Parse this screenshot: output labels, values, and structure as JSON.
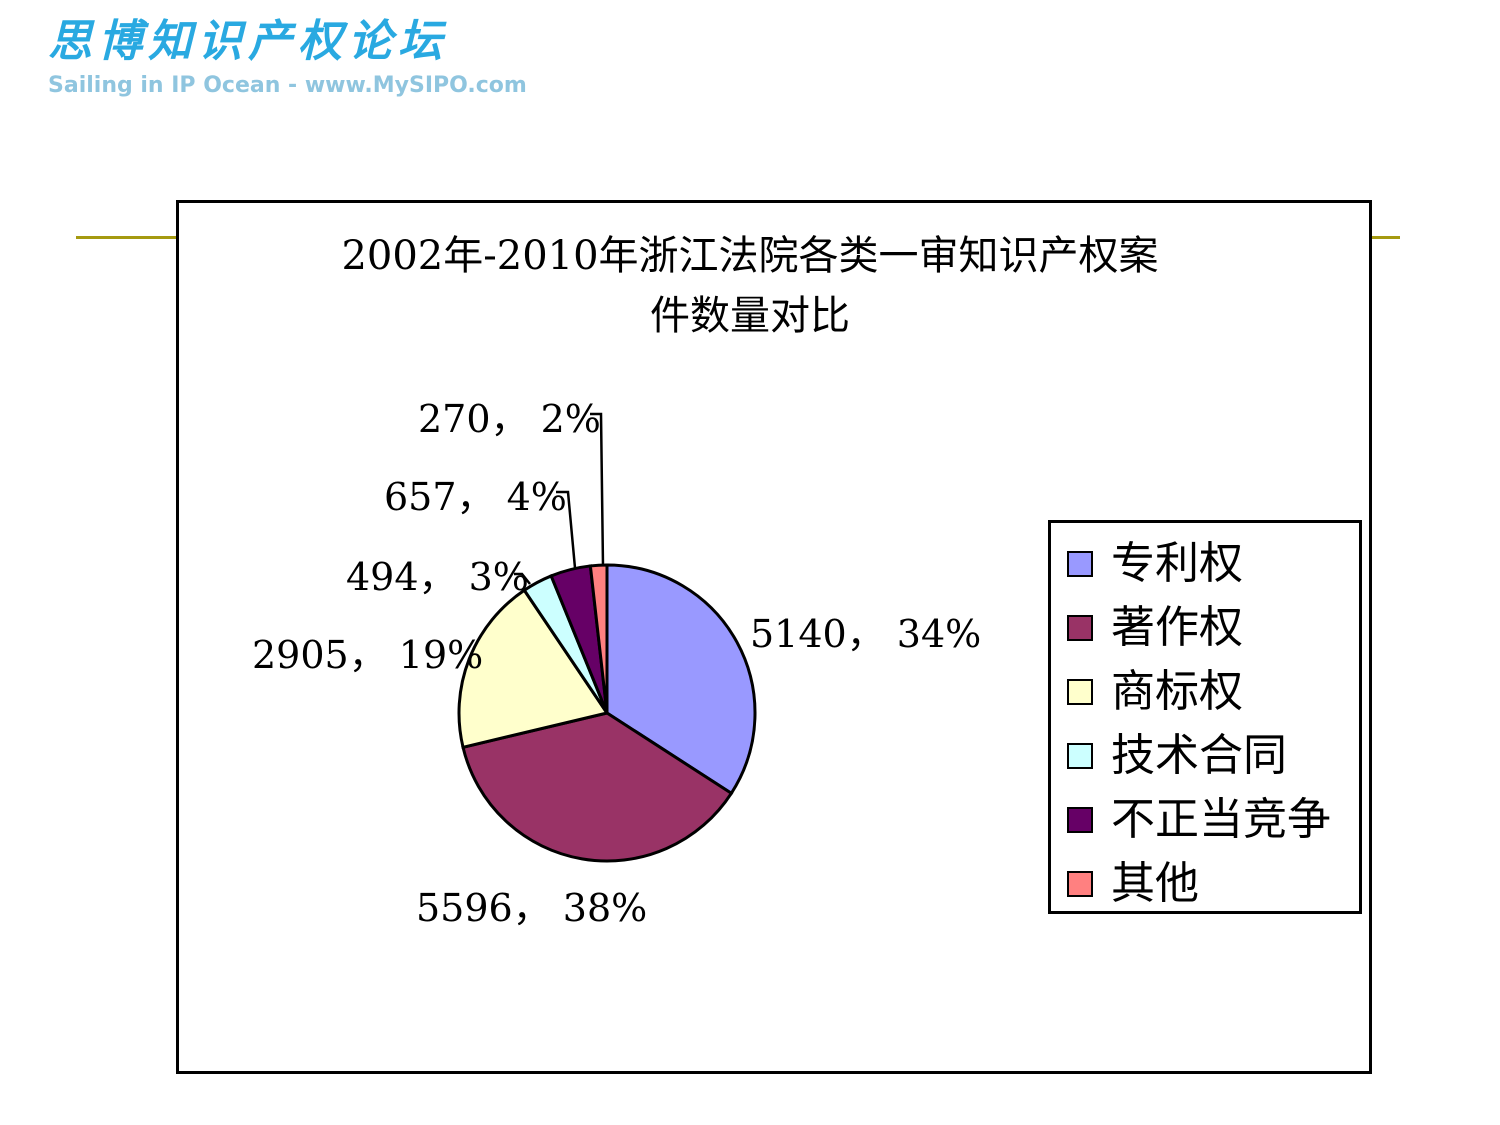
{
  "header": {
    "logo_cn": "思博知识产权论坛",
    "logo_en": "Sailing in IP Ocean - www.MySIPO.com"
  },
  "colors": {
    "logo_blue": "#29a9e1",
    "rule": "#a59a10"
  },
  "chart_data": {
    "type": "pie",
    "title_lines": [
      "2002年-2010年浙江法院各类一审知识产权案",
      "件数量对比"
    ],
    "categories": [
      "专利权",
      "著作权",
      "商标权",
      "技术合同",
      "不正当竞争",
      "其他"
    ],
    "values": [
      5140,
      5596,
      2905,
      494,
      657,
      270
    ],
    "percents": [
      34,
      38,
      19,
      3,
      4,
      2
    ],
    "data_labels": [
      "5140， 34%",
      "5596， 38%",
      "2905， 19%",
      "494， 3%",
      "657， 4%",
      "270， 2%"
    ],
    "colors": [
      "#9999ff",
      "#993366",
      "#ffffcc",
      "#ccffff",
      "#660066",
      "#ff8080"
    ],
    "legend_position": "right"
  }
}
